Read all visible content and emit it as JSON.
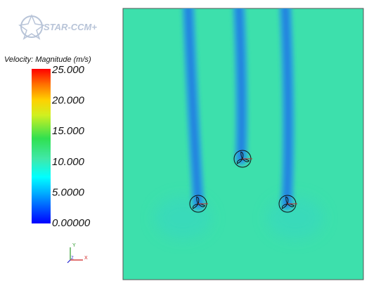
{
  "logo": {
    "text": "STAR-CCM+"
  },
  "legend": {
    "title": "Velocity: Magnitude (m/s)",
    "labels": [
      "25.000",
      "20.000",
      "15.000",
      "10.000",
      "5.0000",
      "0.00000"
    ]
  },
  "axes": {
    "y": "Y",
    "z": "Z",
    "x": "X"
  }
}
